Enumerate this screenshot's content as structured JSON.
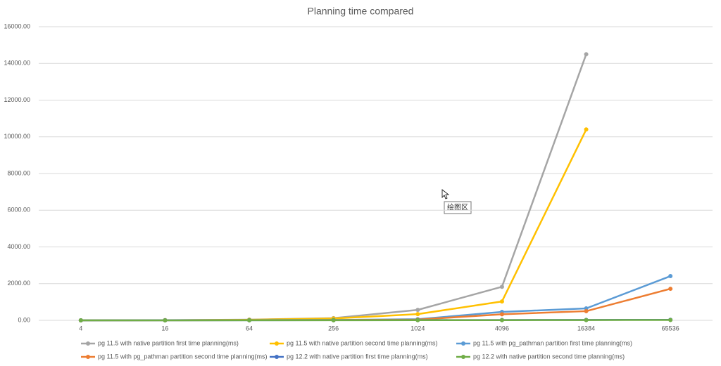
{
  "chart_data": {
    "type": "line",
    "title": "Planning time compared",
    "categories": [
      "4",
      "16",
      "64",
      "256",
      "1024",
      "4096",
      "16384",
      "65536"
    ],
    "series": [
      {
        "name": "pg 11.5 with native partition first time planning(ms)",
        "color": "#a5a5a5",
        "values": [
          2,
          10,
          40,
          120,
          570,
          1830,
          14500,
          null
        ]
      },
      {
        "name": "pg 11.5 with native partition second time planning(ms)",
        "color": "#ffc000",
        "values": [
          1,
          8,
          30,
          100,
          340,
          1030,
          10400,
          null
        ]
      },
      {
        "name": "pg 11.5 with pg_pathman partition first time planning(ms)",
        "color": "#5b9bd5",
        "values": [
          1,
          5,
          10,
          20,
          60,
          460,
          650,
          2410
        ]
      },
      {
        "name": "pg 11.5 with pg_pathman partition second time planning(ms)",
        "color": "#ed7d31",
        "values": [
          1,
          4,
          8,
          15,
          40,
          330,
          500,
          1720
        ]
      },
      {
        "name": "pg 12.2 with native partition first time planning(ms)",
        "color": "#4472c4",
        "values": [
          1,
          3,
          6,
          10,
          15,
          20,
          25,
          30
        ]
      },
      {
        "name": "pg 12.2 with native partition second time planning(ms)",
        "color": "#70ad47",
        "values": [
          1,
          2,
          4,
          6,
          8,
          10,
          15,
          20
        ]
      }
    ],
    "ylim": [
      0,
      16000
    ],
    "yticks": [
      {
        "value": 0,
        "label": "0.00"
      },
      {
        "value": 2000,
        "label": "2000.00"
      },
      {
        "value": 4000,
        "label": "4000.00"
      },
      {
        "value": 6000,
        "label": "6000.00"
      },
      {
        "value": 8000,
        "label": "8000.00"
      },
      {
        "value": 10000,
        "label": "10000.00"
      },
      {
        "value": 12000,
        "label": "12000.00"
      },
      {
        "value": 14000,
        "label": "14000.00"
      },
      {
        "value": 16000,
        "label": "16000.00"
      }
    ],
    "grid": true,
    "legend": "bottom",
    "tooltip": "绘图区"
  }
}
